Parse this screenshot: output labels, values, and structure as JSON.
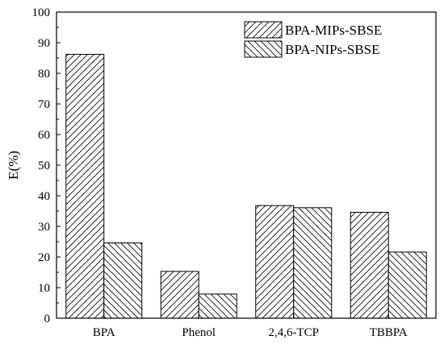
{
  "chart_data": {
    "type": "bar",
    "categories": [
      "BPA",
      "Phenol",
      "2,4,6-TCP",
      "TBBPA"
    ],
    "series": [
      {
        "name": "BPA-MIPs-SBSE",
        "values": [
          86.2,
          15.3,
          36.8,
          34.6
        ],
        "pattern": "hatch-forward"
      },
      {
        "name": "BPA-NIPs-SBSE",
        "values": [
          24.6,
          7.9,
          36.1,
          21.6
        ],
        "pattern": "hatch-backward"
      }
    ],
    "ylabel": "E(%)",
    "xlabel": "",
    "ylim": [
      0,
      100
    ],
    "yticks": [
      0,
      10,
      20,
      30,
      40,
      50,
      60,
      70,
      80,
      90,
      100
    ],
    "legend_position": "top-right",
    "grid": false
  }
}
